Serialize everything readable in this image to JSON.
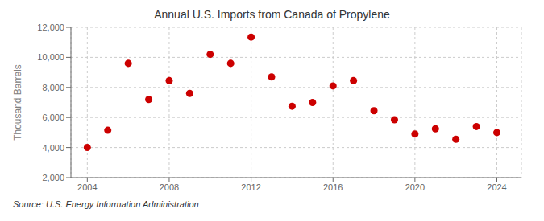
{
  "chart_data": {
    "type": "scatter",
    "title": "Annual U.S. Imports from Canada of Propylene",
    "ylabel": "Thousand Barrels",
    "annotations": [
      "Source: U.S. Energy Information Administration"
    ],
    "x": [
      2004,
      2005,
      2006,
      2007,
      2008,
      2009,
      2010,
      2011,
      2012,
      2013,
      2014,
      2015,
      2016,
      2017,
      2018,
      2019,
      2020,
      2021,
      2022,
      2023,
      2024
    ],
    "values": [
      4000,
      5150,
      9600,
      7200,
      8450,
      7600,
      10200,
      9600,
      11350,
      8700,
      6750,
      7000,
      8100,
      8450,
      6450,
      5850,
      4900,
      5250,
      4550,
      5400,
      5000
    ],
    "color": "#cc0000",
    "xlim": [
      2003.2,
      2025.2
    ],
    "ylim": [
      2000,
      12000
    ],
    "xticks": [
      2004,
      2008,
      2012,
      2016,
      2020,
      2024
    ],
    "yticks": [
      {
        "value": 2000,
        "label": "2,000"
      },
      {
        "value": 4000,
        "label": "4,000"
      },
      {
        "value": 6000,
        "label": "6,000"
      },
      {
        "value": 8000,
        "label": "8,000"
      },
      {
        "value": 10000,
        "label": "10,000"
      },
      {
        "value": 12000,
        "label": "12,000"
      }
    ],
    "grid": true
  }
}
